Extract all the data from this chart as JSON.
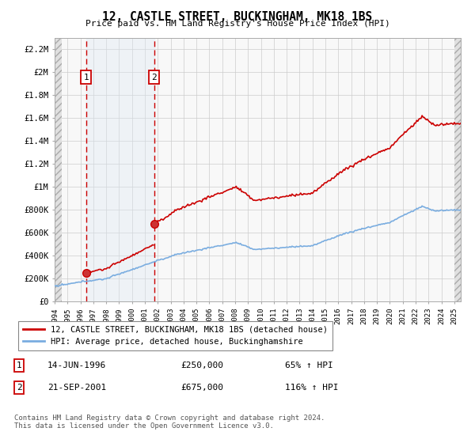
{
  "title": "12, CASTLE STREET, BUCKINGHAM, MK18 1BS",
  "subtitle": "Price paid vs. HM Land Registry's House Price Index (HPI)",
  "hpi_label": "HPI: Average price, detached house, Buckinghamshire",
  "property_label": "12, CASTLE STREET, BUCKINGHAM, MK18 1BS (detached house)",
  "purchases": [
    {
      "date": 1996.45,
      "price": 250000,
      "label": "1",
      "pct": "65%",
      "date_str": "14-JUN-1996"
    },
    {
      "date": 2001.72,
      "price": 675000,
      "label": "2",
      "pct": "116%",
      "date_str": "21-SEP-2001"
    }
  ],
  "hpi_color": "#7aade0",
  "price_color": "#cc0000",
  "vline_color": "#cc0000",
  "highlight_fill": "#dce9f5",
  "ylim": [
    0,
    2300000
  ],
  "xlim": [
    1994.0,
    2025.5
  ],
  "yticks": [
    0,
    200000,
    400000,
    600000,
    800000,
    1000000,
    1200000,
    1400000,
    1600000,
    1800000,
    2000000,
    2200000
  ],
  "ytick_labels": [
    "£0",
    "£200K",
    "£400K",
    "£600K",
    "£800K",
    "£1M",
    "£1.2M",
    "£1.4M",
    "£1.6M",
    "£1.8M",
    "£2M",
    "£2.2M"
  ],
  "xticks": [
    1994,
    1995,
    1996,
    1997,
    1998,
    1999,
    2000,
    2001,
    2002,
    2003,
    2004,
    2005,
    2006,
    2007,
    2008,
    2009,
    2010,
    2011,
    2012,
    2013,
    2014,
    2015,
    2016,
    2017,
    2018,
    2019,
    2020,
    2021,
    2022,
    2023,
    2024,
    2025
  ],
  "footer": "Contains HM Land Registry data © Crown copyright and database right 2024.\nThis data is licensed under the Open Government Licence v3.0.",
  "figsize": [
    6.0,
    5.6
  ],
  "dpi": 100
}
